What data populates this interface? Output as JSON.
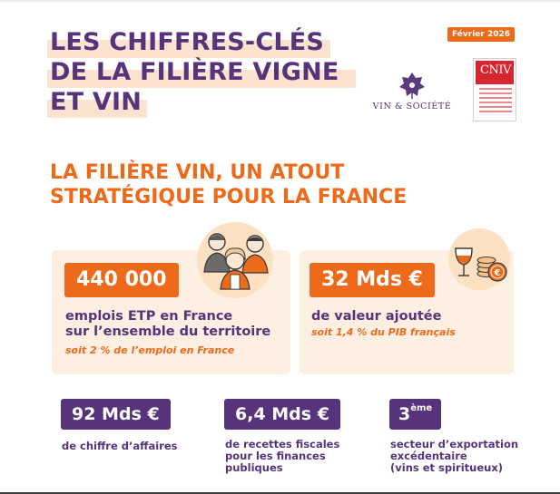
{
  "header": {
    "title_lines": [
      "LES CHIFFRES-CLÉS",
      "DE LA FILIÈRE VIGNE",
      "ET VIN"
    ],
    "date_badge": "Février 2026"
  },
  "logos": {
    "vin_societe": "VIN & SOCIÉTÉ",
    "cniv": "CNIV"
  },
  "section": {
    "title_lines": [
      "LA FILIÈRE VIN, UN ATOUT",
      "STRATÉGIQUE POUR LA FRANCE"
    ]
  },
  "cards": [
    {
      "value": "440 000",
      "description_lines": [
        "emplois ETP en France",
        "sur l’ensemble du territoire"
      ],
      "note": "soit 2 % de l’emploi en France",
      "illustration": "people-icon"
    },
    {
      "value": "32 Mds €",
      "description": "de valeur ajoutée",
      "note": "soit 1,4 % du PIB français",
      "illustration": "wine-coins-icon"
    }
  ],
  "stats": [
    {
      "value": "92 Mds €",
      "label_lines": [
        "de chiffre d’affaires"
      ]
    },
    {
      "value": "6,4 Mds €",
      "label_lines": [
        "de recettes fiscales",
        "pour les finances",
        "publiques"
      ]
    },
    {
      "value": "3",
      "value_suffix": "ème",
      "label_lines": [
        "secteur d’exportation",
        "excédentaire",
        "(vins et spiritueux)"
      ]
    }
  ],
  "colors": {
    "purple": "#56337a",
    "orange": "#ee6a1b",
    "peach": "#fdf0e3",
    "highlight": "#fbe3cf",
    "cniv_red": "#d7262f"
  }
}
